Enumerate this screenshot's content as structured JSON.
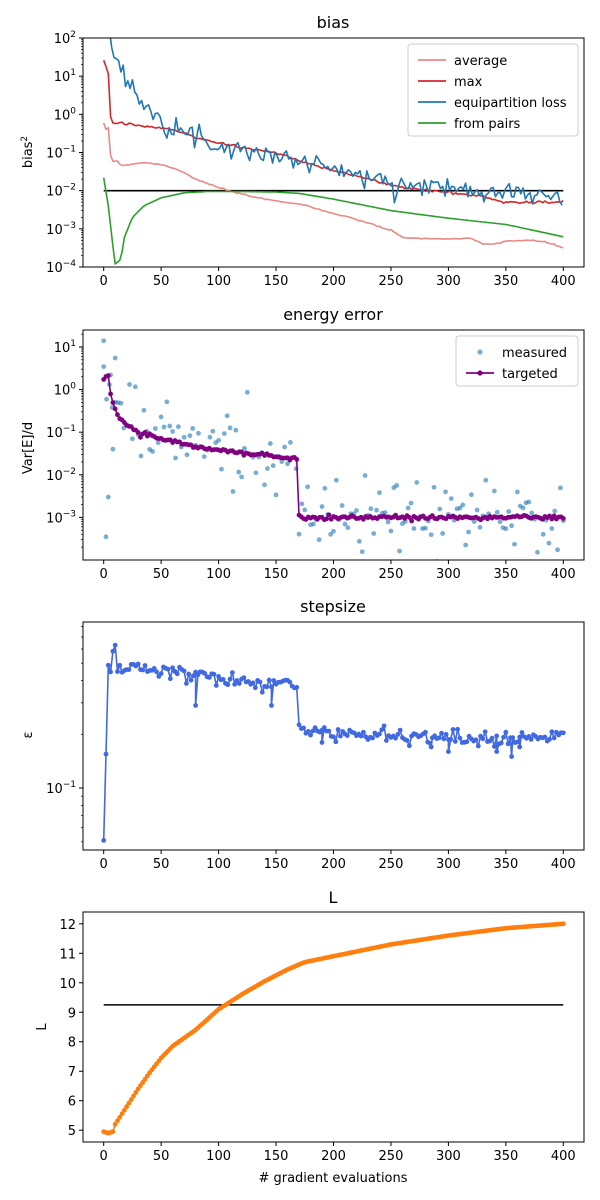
{
  "chart_data": [
    {
      "type": "line",
      "title": "bias",
      "ylabel": "bias",
      "ylabel_sup": "2",
      "xlabel": "",
      "yscale": "log",
      "xlim": [
        -18,
        418
      ],
      "ylim": [
        0.0001,
        100
      ],
      "xticks": [
        0,
        50,
        100,
        150,
        200,
        250,
        300,
        350,
        400
      ],
      "yticks": [
        0.0001,
        0.001,
        0.01,
        0.1,
        1,
        10,
        100
      ],
      "ytick_labels": [
        {
          "b": "10",
          "e": "−4"
        },
        {
          "b": "10",
          "e": "−3"
        },
        {
          "b": "10",
          "e": "−2"
        },
        {
          "b": "10",
          "e": "−1"
        },
        {
          "b": "10",
          "e": "0"
        },
        {
          "b": "10",
          "e": "1"
        },
        {
          "b": "10",
          "e": "2"
        }
      ],
      "legend_position": "top-right",
      "series": [
        {
          "name": "average",
          "color": "#e88a85",
          "key": [
            [
              0,
              0.55
            ],
            [
              2,
              0.4
            ],
            [
              4,
              0.45
            ],
            [
              5,
              0.1
            ],
            [
              8,
              0.06
            ],
            [
              12,
              0.06
            ],
            [
              15,
              0.045
            ],
            [
              25,
              0.05
            ],
            [
              35,
              0.055
            ],
            [
              50,
              0.048
            ],
            [
              60,
              0.04
            ],
            [
              70,
              0.03
            ],
            [
              80,
              0.02
            ],
            [
              100,
              0.012
            ],
            [
              120,
              0.008
            ],
            [
              140,
              0.006
            ],
            [
              150,
              0.0055
            ],
            [
              175,
              0.0042
            ],
            [
              200,
              0.0025
            ],
            [
              225,
              0.0016
            ],
            [
              250,
              0.0009
            ],
            [
              260,
              0.0006
            ],
            [
              280,
              0.00055
            ],
            [
              300,
              0.00055
            ],
            [
              320,
              0.00055
            ],
            [
              330,
              0.0004
            ],
            [
              340,
              0.0004
            ],
            [
              350,
              0.00048
            ],
            [
              370,
              0.0005
            ],
            [
              385,
              0.00045
            ],
            [
              400,
              0.00032
            ]
          ],
          "noise": 0.02
        },
        {
          "name": "max",
          "color": "#d62728",
          "key": [
            [
              0,
              25
            ],
            [
              4,
              12
            ],
            [
              5,
              1
            ],
            [
              8,
              0.6
            ],
            [
              12,
              0.6
            ],
            [
              30,
              0.5
            ],
            [
              60,
              0.4
            ],
            [
              80,
              0.25
            ],
            [
              100,
              0.18
            ],
            [
              130,
              0.12
            ],
            [
              150,
              0.1
            ],
            [
              170,
              0.06
            ],
            [
              200,
              0.035
            ],
            [
              230,
              0.02
            ],
            [
              260,
              0.012
            ],
            [
              300,
              0.009
            ],
            [
              330,
              0.007
            ],
            [
              350,
              0.005
            ],
            [
              375,
              0.005
            ],
            [
              400,
              0.005
            ]
          ],
          "noise": 0.04
        },
        {
          "name": "equipartition loss",
          "color": "#1f77b4",
          "key": [
            [
              5,
              100
            ],
            [
              10,
              30
            ],
            [
              20,
              8
            ],
            [
              30,
              3
            ],
            [
              40,
              1.5
            ],
            [
              50,
              0.8
            ],
            [
              60,
              0.5
            ],
            [
              80,
              0.25
            ],
            [
              100,
              0.15
            ],
            [
              120,
              0.12
            ],
            [
              150,
              0.08
            ],
            [
              170,
              0.06
            ],
            [
              200,
              0.04
            ],
            [
              230,
              0.02
            ],
            [
              260,
              0.015
            ],
            [
              300,
              0.012
            ],
            [
              350,
              0.01
            ],
            [
              400,
              0.006
            ]
          ],
          "noise": 0.28
        },
        {
          "name": "from pairs",
          "color": "#2ca02c",
          "key": [
            [
              0,
              0.022
            ],
            [
              4,
              0.004
            ],
            [
              8,
              0.00035
            ],
            [
              10,
              0.00012
            ],
            [
              15,
              0.00016
            ],
            [
              18,
              0.0006
            ],
            [
              25,
              0.002
            ],
            [
              35,
              0.004
            ],
            [
              50,
              0.0065
            ],
            [
              70,
              0.0088
            ],
            [
              90,
              0.0095
            ],
            [
              120,
              0.0095
            ],
            [
              150,
              0.0092
            ],
            [
              170,
              0.0085
            ],
            [
              200,
              0.006
            ],
            [
              250,
              0.003
            ],
            [
              300,
              0.0019
            ],
            [
              350,
              0.0013
            ],
            [
              375,
              0.0009
            ],
            [
              400,
              0.00062
            ]
          ],
          "noise": 0
        }
      ],
      "hlines": [
        {
          "y": 0.01,
          "x0": 0,
          "x1": 400,
          "color": "#000000"
        }
      ]
    },
    {
      "type": "line",
      "title": "energy error",
      "ylabel": "Var[E]/d",
      "xlabel": "",
      "yscale": "log",
      "xlim": [
        -18,
        418
      ],
      "ylim": [
        0.0001,
        25
      ],
      "xticks": [
        0,
        50,
        100,
        150,
        200,
        250,
        300,
        350,
        400
      ],
      "yticks": [
        0.001,
        0.01,
        0.1,
        1,
        10
      ],
      "ytick_labels": [
        {
          "b": "10",
          "e": "−3"
        },
        {
          "b": "10",
          "e": "−2"
        },
        {
          "b": "10",
          "e": "−1"
        },
        {
          "b": "10",
          "e": "0"
        },
        {
          "b": "10",
          "e": "1"
        }
      ],
      "legend_position": "top-right",
      "series": [
        {
          "name": "measured",
          "color": "#1f77b4",
          "style": "scatter",
          "key": [
            [
              0,
              1.8
            ],
            [
              10,
              0.6
            ],
            [
              20,
              0.2
            ],
            [
              50,
              0.08
            ],
            [
              100,
              0.045
            ],
            [
              150,
              0.03
            ],
            [
              165,
              0.025
            ],
            [
              170,
              0.001
            ],
            [
              400,
              0.001
            ]
          ],
          "noise": 1.0,
          "step": 2.5,
          "extra": [
            [
              0,
              14
            ],
            [
              2,
              0.00035
            ],
            [
              4,
              0.003
            ],
            [
              6,
              2.2
            ],
            [
              10,
              5.5
            ],
            [
              8,
              0.04
            ]
          ]
        },
        {
          "name": "targeted",
          "color": "#800080",
          "style": "linemarker",
          "key": [
            [
              0,
              1.8
            ],
            [
              4,
              2.1
            ],
            [
              6,
              0.8
            ],
            [
              10,
              0.35
            ],
            [
              15,
              0.18
            ],
            [
              20,
              0.15
            ],
            [
              30,
              0.1
            ],
            [
              50,
              0.07
            ],
            [
              80,
              0.045
            ],
            [
              100,
              0.038
            ],
            [
              130,
              0.03
            ],
            [
              150,
              0.027
            ],
            [
              165,
              0.025
            ],
            [
              168,
              0.022
            ],
            [
              170,
              0.001
            ],
            [
              400,
              0.001
            ]
          ],
          "noise": 0.06,
          "step": 2
        }
      ]
    },
    {
      "type": "line",
      "title": "stepsize",
      "ylabel": "ε",
      "xlabel": "",
      "yscale": "log",
      "xlim": [
        -18,
        418
      ],
      "ylim": [
        0.045,
        0.85
      ],
      "xticks": [
        0,
        50,
        100,
        150,
        200,
        250,
        300,
        350,
        400
      ],
      "yticks": [
        0.1
      ],
      "ytick_labels": [
        {
          "b": "10",
          "e": "−1"
        }
      ],
      "legend_position": "",
      "series": [
        {
          "name": "",
          "color": "#4169e1",
          "style": "linemarker",
          "key": [
            [
              0,
              0.05
            ],
            [
              2,
              0.15
            ],
            [
              4,
              0.45
            ],
            [
              6,
              0.45
            ],
            [
              8,
              0.55
            ],
            [
              10,
              0.65
            ],
            [
              12,
              0.48
            ],
            [
              20,
              0.47
            ],
            [
              50,
              0.45
            ],
            [
              80,
              0.43
            ],
            [
              100,
              0.4
            ],
            [
              130,
              0.39
            ],
            [
              165,
              0.38
            ],
            [
              168,
              0.35
            ],
            [
              170,
              0.22
            ],
            [
              200,
              0.2
            ],
            [
              250,
              0.2
            ],
            [
              300,
              0.19
            ],
            [
              350,
              0.19
            ],
            [
              400,
              0.195
            ]
          ],
          "noise": 0.05,
          "step": 2,
          "extra": [
            [
              80,
              0.29
            ],
            [
              146,
              0.29
            ],
            [
              190,
              0.18
            ],
            [
              285,
              0.17
            ],
            [
              300,
              0.16
            ],
            [
              342,
              0.16
            ],
            [
              355,
              0.15
            ],
            [
              362,
              0.17
            ]
          ]
        }
      ]
    },
    {
      "type": "line",
      "title": "L",
      "ylabel": "L",
      "xlabel": "# gradient evaluations",
      "yscale": "linear",
      "xlim": [
        -18,
        418
      ],
      "ylim": [
        4.6,
        12.4
      ],
      "xticks": [
        0,
        50,
        100,
        150,
        200,
        250,
        300,
        350,
        400
      ],
      "yticks": [
        5,
        6,
        7,
        8,
        9,
        10,
        11,
        12
      ],
      "legend_position": "",
      "series": [
        {
          "name": "",
          "color": "#ff7f0e",
          "style": "linemarker",
          "key": [
            [
              0,
              4.95
            ],
            [
              4,
              4.9
            ],
            [
              8,
              4.95
            ],
            [
              10,
              5.2
            ],
            [
              20,
              5.8
            ],
            [
              30,
              6.4
            ],
            [
              40,
              6.95
            ],
            [
              50,
              7.45
            ],
            [
              60,
              7.85
            ],
            [
              80,
              8.4
            ],
            [
              100,
              9.1
            ],
            [
              120,
              9.6
            ],
            [
              140,
              10.05
            ],
            [
              160,
              10.45
            ],
            [
              175,
              10.7
            ],
            [
              200,
              10.9
            ],
            [
              250,
              11.3
            ],
            [
              300,
              11.6
            ],
            [
              350,
              11.85
            ],
            [
              400,
              12.0
            ]
          ],
          "noise": 0,
          "step": 2
        }
      ],
      "hlines": [
        {
          "y": 9.25,
          "x0": 0,
          "x1": 400,
          "color": "#000000"
        }
      ]
    }
  ]
}
